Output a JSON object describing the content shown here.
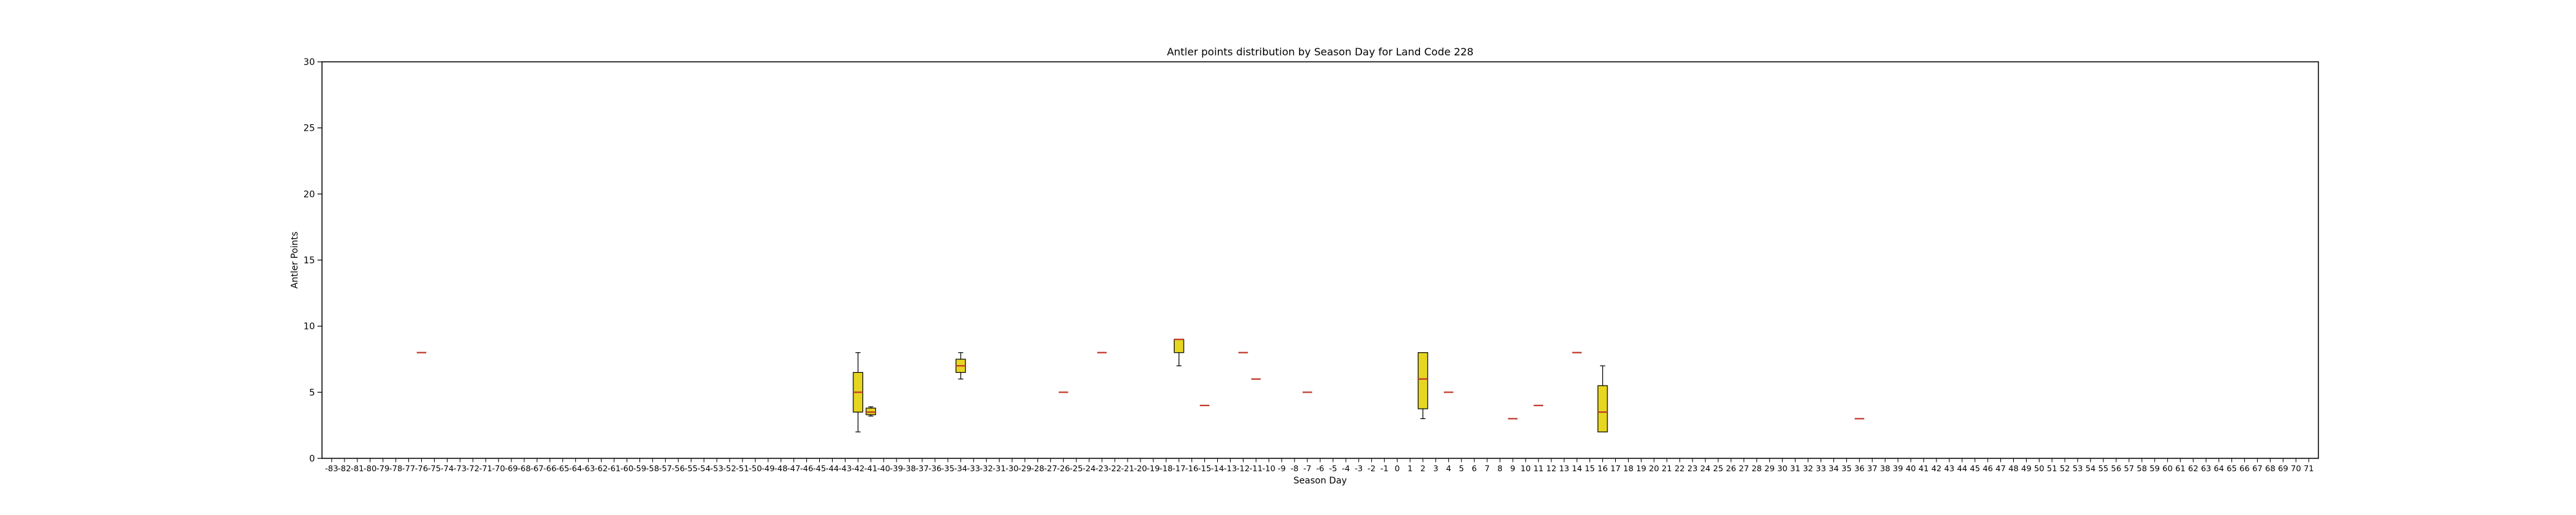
{
  "chart_data": {
    "type": "box",
    "title": "Antler points distribution by Season Day for Land Code 228",
    "xlabel": "Season Day",
    "ylabel": "Antler Points",
    "ylim": [
      0,
      30
    ],
    "yticks": [
      0,
      5,
      10,
      15,
      20,
      25,
      30
    ],
    "x_range": [
      -83,
      71
    ],
    "box_color": "#e6d620",
    "median_color": "#c0392b",
    "grid": false,
    "boxes": [
      {
        "day": -76,
        "min": 8,
        "q1": 8,
        "median": 8,
        "q3": 8,
        "max": 8
      },
      {
        "day": -42,
        "min": 2,
        "q1": 3.5,
        "median": 5,
        "q3": 6.5,
        "max": 8
      },
      {
        "day": -41,
        "min": 3.2,
        "q1": 3.3,
        "median": 3.5,
        "q3": 3.8,
        "max": 3.9
      },
      {
        "day": -34,
        "min": 6,
        "q1": 6.5,
        "median": 7,
        "q3": 7.5,
        "max": 8
      },
      {
        "day": -26,
        "min": 5,
        "q1": 5,
        "median": 5,
        "q3": 5,
        "max": 5
      },
      {
        "day": -23,
        "min": 8,
        "q1": 8,
        "median": 8,
        "q3": 8,
        "max": 8
      },
      {
        "day": -17,
        "min": 7,
        "q1": 8,
        "median": 9,
        "q3": 9,
        "max": 9
      },
      {
        "day": -15,
        "min": 4,
        "q1": 4,
        "median": 4,
        "q3": 4,
        "max": 4
      },
      {
        "day": -12,
        "min": 8,
        "q1": 8,
        "median": 8,
        "q3": 8,
        "max": 8
      },
      {
        "day": -11,
        "min": 6,
        "q1": 6,
        "median": 6,
        "q3": 6,
        "max": 6
      },
      {
        "day": -7,
        "min": 5,
        "q1": 5,
        "median": 5,
        "q3": 5,
        "max": 5
      },
      {
        "day": 2,
        "min": 3,
        "q1": 3.75,
        "median": 6,
        "q3": 8,
        "max": 8
      },
      {
        "day": 4,
        "min": 5,
        "q1": 5,
        "median": 5,
        "q3": 5,
        "max": 5
      },
      {
        "day": 9,
        "min": 3,
        "q1": 3,
        "median": 3,
        "q3": 3,
        "max": 3
      },
      {
        "day": 11,
        "min": 4,
        "q1": 4,
        "median": 4,
        "q3": 4,
        "max": 4
      },
      {
        "day": 14,
        "min": 8,
        "q1": 8,
        "median": 8,
        "q3": 8,
        "max": 8
      },
      {
        "day": 16,
        "min": 2,
        "q1": 2,
        "median": 3.5,
        "q3": 5.5,
        "max": 7
      },
      {
        "day": 36,
        "min": 3,
        "q1": 3,
        "median": 3,
        "q3": 3,
        "max": 3
      }
    ]
  }
}
